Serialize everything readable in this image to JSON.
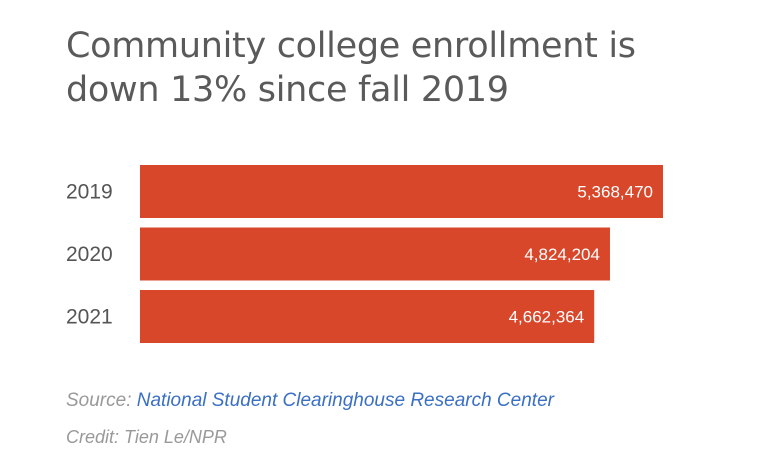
{
  "chart_data": {
    "type": "bar",
    "orientation": "horizontal",
    "title": "Community college enrollment is down 13% since fall 2019",
    "categories": [
      "2019",
      "2020",
      "2021"
    ],
    "values": [
      5368470,
      4824204,
      4662364
    ],
    "data_labels": [
      "5,368,470",
      "4,824,204",
      "4,662,364"
    ],
    "xlim": [
      0,
      5368470
    ],
    "grid": false,
    "bar_color": "#d9472b"
  },
  "footer": {
    "source_label": "Source:",
    "source_link": "National Student Clearinghouse Research Center",
    "credit": "Credit: Tien Le/NPR"
  }
}
